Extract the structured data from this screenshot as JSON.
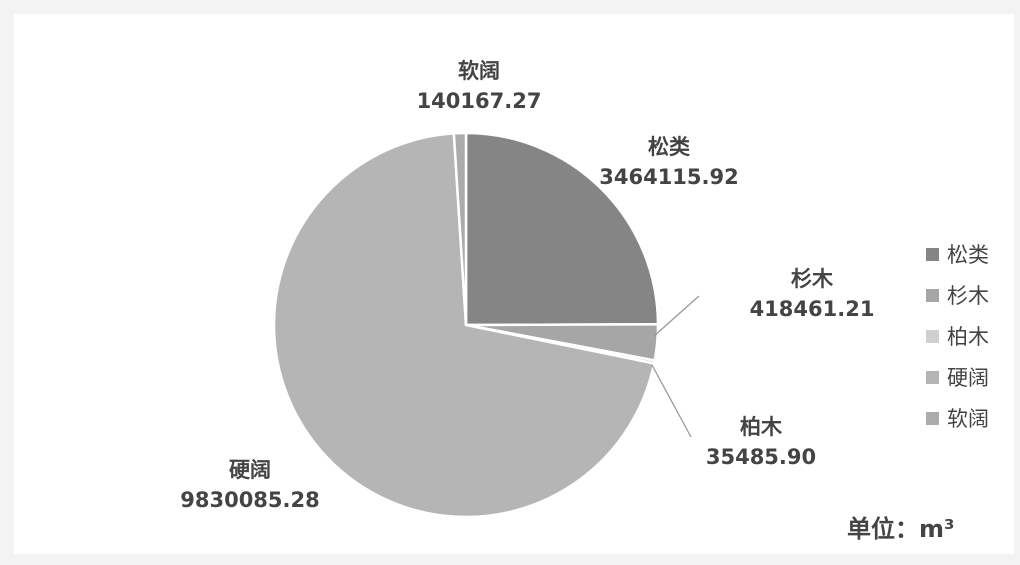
{
  "chart_data": {
    "type": "pie",
    "title": "",
    "unit_label": "单位：m³",
    "legend_position": "right",
    "slices": [
      {
        "label": "松类",
        "value": 3464115.92,
        "value_text": "3464115.92",
        "color": "#858585"
      },
      {
        "label": "杉木",
        "value": 418461.21,
        "value_text": "418461.21",
        "color": "#a6a6a6"
      },
      {
        "label": "柏木",
        "value": 35485.9,
        "value_text": "35485.90",
        "color": "#cfcfcf"
      },
      {
        "label": "硬阔",
        "value": 9830085.28,
        "value_text": "9830085.28",
        "color": "#b5b5b5"
      },
      {
        "label": "软阔",
        "value": 140167.27,
        "value_text": "140167.27",
        "color": "#ababab"
      }
    ]
  }
}
